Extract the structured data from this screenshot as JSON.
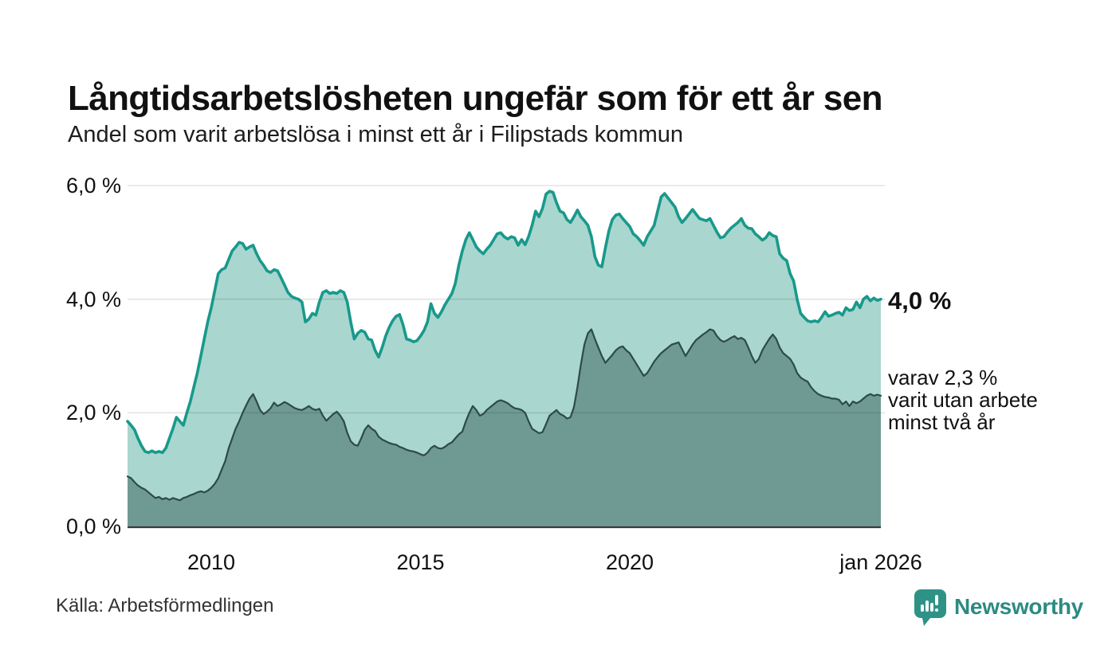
{
  "header": {
    "title": "Långtidsarbetslösheten ungefär som för ett år sen",
    "subtitle": "Andel som varit arbetslösa i minst ett år i Filipstads kommun"
  },
  "annotations": {
    "latest_total": "4,0 %",
    "lines": [
      "varav 2,3 %",
      "varit utan arbete",
      "minst två år"
    ]
  },
  "footer": {
    "source": "Källa: Arbetsförmedlingen",
    "brand": "Newsworthy"
  },
  "chart_data": {
    "type": "area",
    "title": "Långtidsarbetslösheten ungefär som för ett år sen",
    "subtitle": "Andel som varit arbetslösa i minst ett år i Filipstads kommun",
    "x_start_year": 2008.0,
    "x_end_year": 2026.0,
    "x_step": "monthly",
    "ylim": [
      0,
      6
    ],
    "grid_values": [
      2,
      4,
      6
    ],
    "y_ticks": [
      {
        "label": "6,0 %",
        "value": 6
      },
      {
        "label": "4,0 %",
        "value": 4
      },
      {
        "label": "2,0 %",
        "value": 2
      },
      {
        "label": "0,0 %",
        "value": 0
      }
    ],
    "x_ticks": [
      {
        "label": "2010",
        "year": 2010
      },
      {
        "label": "2015",
        "year": 2015
      },
      {
        "label": "2020",
        "year": 2020
      },
      {
        "label": "jan 2026",
        "year": 2026
      }
    ],
    "colors": {
      "line_total": "#18998b",
      "fill_total": "#a9d6ce",
      "line_two_years": "#2d4b46",
      "fill_two_years": "#6f9a93",
      "grid": "rgba(0,0,0,0.11)",
      "baseline": "#3c3c3c",
      "brand_teal": "#2c8b81"
    },
    "series": [
      {
        "name": "arbetslösa minst ett år",
        "latest_label": "4,0 %",
        "values": [
          1.85,
          1.78,
          1.7,
          1.55,
          1.42,
          1.32,
          1.3,
          1.33,
          1.3,
          1.32,
          1.3,
          1.38,
          1.55,
          1.72,
          1.92,
          1.85,
          1.78,
          2.0,
          2.2,
          2.45,
          2.7,
          3.0,
          3.3,
          3.6,
          3.85,
          4.15,
          4.45,
          4.52,
          4.55,
          4.7,
          4.85,
          4.92,
          5.0,
          4.98,
          4.88,
          4.92,
          4.95,
          4.8,
          4.68,
          4.6,
          4.5,
          4.47,
          4.52,
          4.5,
          4.38,
          4.25,
          4.12,
          4.05,
          4.02,
          4.0,
          3.95,
          3.6,
          3.65,
          3.75,
          3.72,
          3.95,
          4.12,
          4.15,
          4.1,
          4.12,
          4.1,
          4.15,
          4.12,
          3.95,
          3.6,
          3.3,
          3.4,
          3.45,
          3.42,
          3.3,
          3.28,
          3.1,
          2.98,
          3.15,
          3.35,
          3.5,
          3.62,
          3.7,
          3.73,
          3.55,
          3.3,
          3.28,
          3.25,
          3.27,
          3.35,
          3.45,
          3.6,
          3.92,
          3.75,
          3.68,
          3.78,
          3.9,
          4.0,
          4.1,
          4.28,
          4.6,
          4.85,
          5.05,
          5.17,
          5.05,
          4.92,
          4.85,
          4.8,
          4.88,
          4.95,
          5.05,
          5.15,
          5.17,
          5.1,
          5.06,
          5.1,
          5.08,
          4.95,
          5.05,
          4.96,
          5.1,
          5.3,
          5.55,
          5.45,
          5.6,
          5.85,
          5.9,
          5.88,
          5.7,
          5.55,
          5.52,
          5.4,
          5.35,
          5.45,
          5.57,
          5.45,
          5.38,
          5.3,
          5.1,
          4.75,
          4.6,
          4.57,
          4.9,
          5.2,
          5.4,
          5.48,
          5.5,
          5.42,
          5.35,
          5.28,
          5.15,
          5.1,
          5.03,
          4.95,
          5.1,
          5.2,
          5.3,
          5.55,
          5.8,
          5.86,
          5.78,
          5.7,
          5.62,
          5.45,
          5.35,
          5.42,
          5.5,
          5.58,
          5.5,
          5.42,
          5.4,
          5.38,
          5.42,
          5.3,
          5.18,
          5.08,
          5.1,
          5.18,
          5.25,
          5.3,
          5.35,
          5.42,
          5.3,
          5.25,
          5.24,
          5.15,
          5.1,
          5.04,
          5.08,
          5.17,
          5.12,
          5.1,
          4.8,
          4.72,
          4.68,
          4.45,
          4.32,
          4.0,
          3.75,
          3.68,
          3.62,
          3.6,
          3.62,
          3.6,
          3.68,
          3.78,
          3.7,
          3.72,
          3.75,
          3.77,
          3.72,
          3.85,
          3.8,
          3.82,
          3.95,
          3.85,
          4.0,
          4.05,
          3.97,
          4.02,
          3.98,
          4.0
        ]
      },
      {
        "name": "varav utan arbete minst två år",
        "latest_label": "2,3 %",
        "values": [
          0.88,
          0.85,
          0.78,
          0.72,
          0.68,
          0.65,
          0.6,
          0.55,
          0.5,
          0.52,
          0.48,
          0.5,
          0.47,
          0.5,
          0.48,
          0.46,
          0.5,
          0.52,
          0.55,
          0.57,
          0.6,
          0.62,
          0.6,
          0.63,
          0.68,
          0.75,
          0.85,
          1.0,
          1.15,
          1.38,
          1.55,
          1.72,
          1.85,
          2.0,
          2.13,
          2.25,
          2.33,
          2.2,
          2.05,
          1.98,
          2.02,
          2.08,
          2.18,
          2.12,
          2.15,
          2.19,
          2.16,
          2.12,
          2.08,
          2.06,
          2.05,
          2.08,
          2.12,
          2.07,
          2.05,
          2.07,
          1.95,
          1.86,
          1.92,
          1.98,
          2.02,
          1.95,
          1.85,
          1.65,
          1.5,
          1.44,
          1.42,
          1.55,
          1.7,
          1.78,
          1.72,
          1.68,
          1.58,
          1.53,
          1.5,
          1.47,
          1.45,
          1.44,
          1.4,
          1.38,
          1.35,
          1.33,
          1.32,
          1.3,
          1.27,
          1.25,
          1.3,
          1.38,
          1.42,
          1.38,
          1.37,
          1.4,
          1.45,
          1.48,
          1.55,
          1.62,
          1.67,
          1.85,
          2.0,
          2.12,
          2.05,
          1.95,
          1.98,
          2.05,
          2.1,
          2.15,
          2.2,
          2.22,
          2.2,
          2.17,
          2.12,
          2.08,
          2.07,
          2.05,
          2.0,
          1.85,
          1.72,
          1.68,
          1.64,
          1.66,
          1.8,
          1.95,
          2.0,
          2.05,
          1.98,
          1.95,
          1.9,
          1.92,
          2.1,
          2.45,
          2.85,
          3.2,
          3.4,
          3.47,
          3.3,
          3.15,
          3.0,
          2.88,
          2.95,
          3.02,
          3.1,
          3.15,
          3.17,
          3.1,
          3.05,
          2.95,
          2.85,
          2.75,
          2.65,
          2.7,
          2.8,
          2.9,
          2.98,
          3.05,
          3.1,
          3.15,
          3.2,
          3.22,
          3.24,
          3.12,
          3.0,
          3.1,
          3.2,
          3.28,
          3.33,
          3.38,
          3.42,
          3.47,
          3.45,
          3.35,
          3.28,
          3.25,
          3.28,
          3.32,
          3.35,
          3.3,
          3.32,
          3.28,
          3.15,
          3.0,
          2.88,
          2.95,
          3.1,
          3.2,
          3.3,
          3.38,
          3.3,
          3.15,
          3.05,
          3.0,
          2.95,
          2.85,
          2.7,
          2.62,
          2.58,
          2.55,
          2.45,
          2.38,
          2.33,
          2.3,
          2.28,
          2.27,
          2.25,
          2.25,
          2.23,
          2.15,
          2.2,
          2.12,
          2.2,
          2.17,
          2.2,
          2.25,
          2.3,
          2.33,
          2.3,
          2.32,
          2.3
        ]
      }
    ]
  }
}
